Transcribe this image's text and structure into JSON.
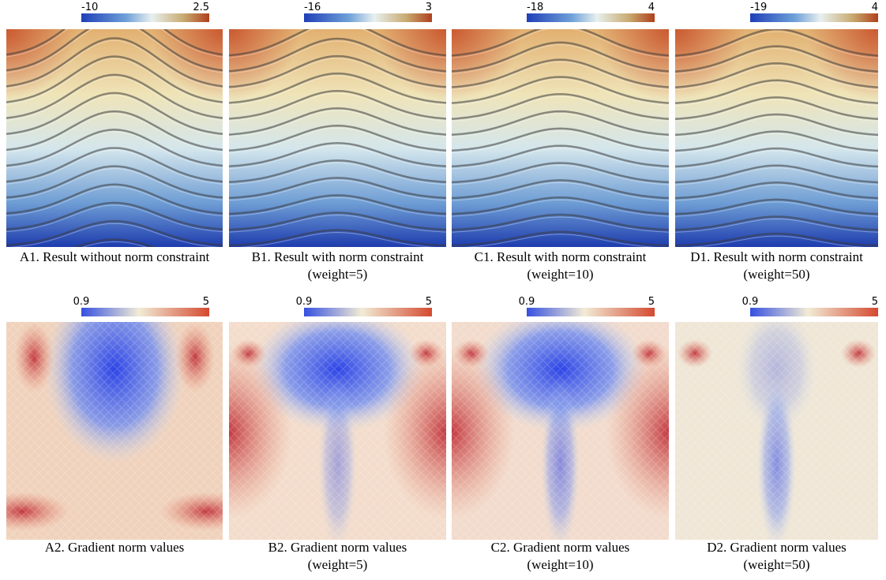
{
  "rows": [
    {
      "panels": [
        {
          "colorbar": {
            "min": -10,
            "max": 2.5
          },
          "caption": [
            "A1. Result without norm constraint"
          ]
        },
        {
          "colorbar": {
            "min": -16,
            "max": 3
          },
          "caption": [
            "B1. Result with norm constraint",
            "(weight=5)"
          ]
        },
        {
          "colorbar": {
            "min": -18,
            "max": 4
          },
          "caption": [
            "C1. Result with norm constraint",
            "(weight=10)"
          ]
        },
        {
          "colorbar": {
            "min": -19,
            "max": 4
          },
          "caption": [
            "D1. Result with norm constraint",
            "(weight=50)"
          ]
        }
      ]
    },
    {
      "panels": [
        {
          "colorbar": {
            "min": 0.9,
            "max": 5
          },
          "caption": [
            "A2. Gradient norm values"
          ]
        },
        {
          "colorbar": {
            "min": 0.9,
            "max": 5
          },
          "caption": [
            "B2. Gradient norm values",
            "(weight=5)"
          ]
        },
        {
          "colorbar": {
            "min": 0.9,
            "max": 5
          },
          "caption": [
            "C2. Gradient norm values",
            "(weight=10)"
          ]
        },
        {
          "colorbar": {
            "min": 0.9,
            "max": 5
          },
          "caption": [
            "D2. Gradient norm values",
            "(weight=50)"
          ]
        }
      ]
    }
  ]
}
